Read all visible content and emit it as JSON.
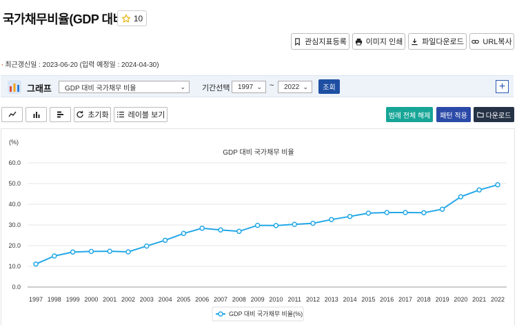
{
  "page": {
    "title": "국가채무비율(GDP 대비)",
    "favorite_count": "10"
  },
  "toolbar": {
    "bookmark": "관심지표등록",
    "print": "이미지 인쇄",
    "download_file": "파일다운로드",
    "copy_url": "URL복사"
  },
  "updated_text": "최근갱신일 : 2023-06-20 (입력 예정일 : 2024-04-30)",
  "filter": {
    "graph_label": "그래프",
    "indicator_select": "GDP 대비 국가채무 비율",
    "period_label": "기간선택",
    "from_year": "1997",
    "to_year": "2022",
    "tilde": "~",
    "query_button": "조회",
    "plus": "+"
  },
  "controls": {
    "reset": "초기화",
    "label_view": "레이블 보기",
    "legend_release": "범례 전체 해제",
    "pattern_apply": "패턴 적용",
    "download": "다운로드"
  },
  "colors": {
    "line": "#22a7e6",
    "query": "#1e4fa3",
    "legend_release": "#16a596",
    "pattern_apply": "#2b4aa8",
    "download": "#253246"
  },
  "chart_data": {
    "type": "line",
    "title": "GDP 대비 국가채무 비율",
    "ylabel": "(%)",
    "xlabel": "",
    "ylim": [
      0,
      60
    ],
    "yticks": [
      "0.0",
      "10.0",
      "20.0",
      "30.0",
      "40.0",
      "50.0",
      "60.0"
    ],
    "grid": true,
    "legend": "bottom",
    "x": [
      "1997",
      "1998",
      "1999",
      "2000",
      "2001",
      "2002",
      "2003",
      "2004",
      "2005",
      "2006",
      "2007",
      "2008",
      "2009",
      "2010",
      "2011",
      "2012",
      "2013",
      "2014",
      "2015",
      "2016",
      "2017",
      "2018",
      "2019",
      "2020",
      "2021",
      "2022"
    ],
    "series": [
      {
        "name": "GDP 대비 국가채무 비율(%)",
        "values": [
          11.1,
          15.0,
          16.9,
          17.2,
          17.3,
          17.0,
          19.8,
          22.6,
          25.9,
          28.4,
          27.6,
          26.9,
          29.8,
          29.7,
          30.3,
          30.8,
          32.6,
          34.1,
          35.7,
          36.0,
          36.0,
          35.9,
          37.6,
          43.6,
          46.9,
          49.4
        ]
      }
    ]
  }
}
